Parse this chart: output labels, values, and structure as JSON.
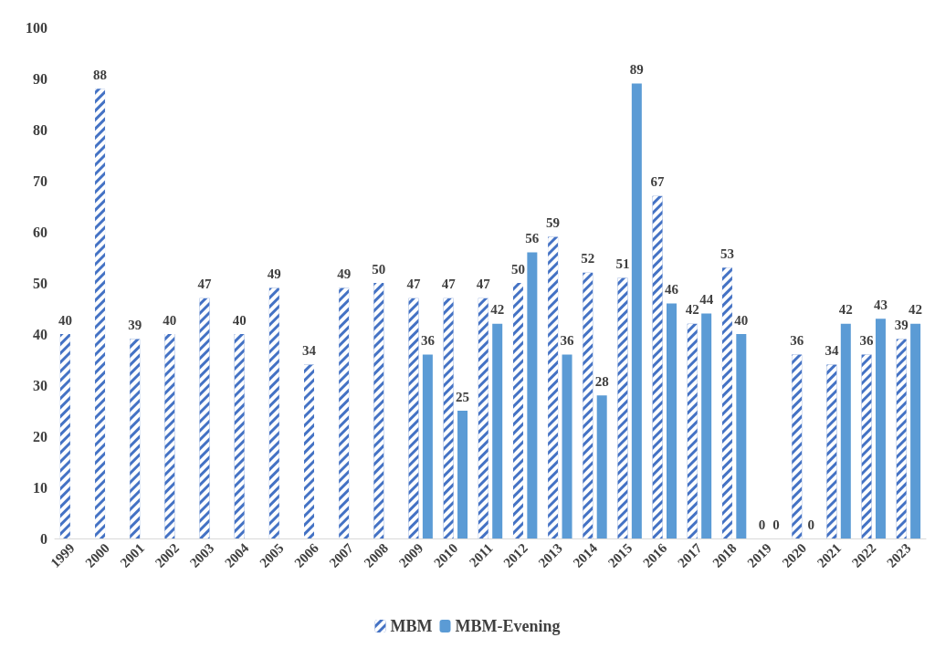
{
  "chart_data": {
    "type": "bar",
    "categories": [
      "1999",
      "2000",
      "2001",
      "2002",
      "2003",
      "2004",
      "2005",
      "2006",
      "2007",
      "2008",
      "2009",
      "2010",
      "2011",
      "2012",
      "2013",
      "2014",
      "2015",
      "2016",
      "2017",
      "2018",
      "2019",
      "2020",
      "2021",
      "2022",
      "2023"
    ],
    "series": [
      {
        "name": "MBM",
        "color": "#4472c4",
        "values": [
          40,
          88,
          39,
          40,
          47,
          40,
          49,
          34,
          49,
          50,
          47,
          47,
          47,
          50,
          59,
          52,
          51,
          67,
          42,
          53,
          0,
          36,
          34,
          36,
          39
        ]
      },
      {
        "name": "MBM-Evening",
        "color": "#5b9bd5",
        "values": [
          null,
          null,
          null,
          null,
          null,
          null,
          null,
          null,
          null,
          null,
          36,
          25,
          42,
          56,
          36,
          28,
          89,
          46,
          44,
          40,
          0,
          0,
          42,
          43,
          42
        ]
      }
    ],
    "ylim": [
      0,
      100
    ],
    "yticks": [
      0,
      10,
      20,
      30,
      40,
      50,
      60,
      70,
      80,
      90,
      100
    ],
    "grid": false,
    "legend": "bottom",
    "data_labels": true
  }
}
